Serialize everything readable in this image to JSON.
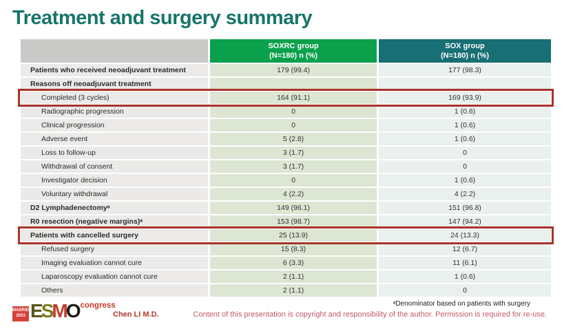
{
  "slide": {
    "title": "Treatment and surgery summary"
  },
  "table": {
    "columns": [
      {
        "label": "SOXRC group",
        "sublabel": "(N=180)  n (%)"
      },
      {
        "label": "SOX group",
        "sublabel": "(N=180)  n (%)"
      }
    ],
    "rows": [
      {
        "label": "Patients who received neoadjuvant treatment",
        "soxrc": "179 (99.4)",
        "sox": "177 (98.3)",
        "bold": true,
        "indent": false,
        "boxed": false
      },
      {
        "label": "Reasons off neoadjuvant treatment",
        "soxrc": "",
        "sox": "",
        "bold": true,
        "indent": false,
        "boxed": false
      },
      {
        "label": "Completed (3 cycles)",
        "soxrc": "164 (91.1)",
        "sox": "169 (93.9)",
        "bold": false,
        "indent": true,
        "boxed": true
      },
      {
        "label": "Radiographic progression",
        "soxrc": "0",
        "sox": "1 (0.6)",
        "bold": false,
        "indent": true,
        "boxed": false
      },
      {
        "label": "Clinical progression",
        "soxrc": "0",
        "sox": "1 (0.6)",
        "bold": false,
        "indent": true,
        "boxed": false
      },
      {
        "label": "Adverse event",
        "soxrc": "5 (2.8)",
        "sox": "1 (0.6)",
        "bold": false,
        "indent": true,
        "boxed": false
      },
      {
        "label": "Loss to follow-up",
        "soxrc": "3 (1.7)",
        "sox": "0",
        "bold": false,
        "indent": true,
        "boxed": false
      },
      {
        "label": "Withdrawal of consent",
        "soxrc": "3 (1.7)",
        "sox": "0",
        "bold": false,
        "indent": true,
        "boxed": false
      },
      {
        "label": "Investigator decision",
        "soxrc": "0",
        "sox": "1 (0.6)",
        "bold": false,
        "indent": true,
        "boxed": false
      },
      {
        "label": "Voluntary withdrawal",
        "soxrc": "4 (2.2)",
        "sox": "4 (2.2)",
        "bold": false,
        "indent": true,
        "boxed": false
      },
      {
        "label": "D2 Lymphadenectomyᵃ",
        "soxrc": "149 (96.1)",
        "sox": "151 (96.8)",
        "bold": true,
        "indent": false,
        "boxed": false
      },
      {
        "label": "R0 resection (negative margins)ᵃ",
        "soxrc": "153 (98.7)",
        "sox": "147 (94.2)",
        "bold": true,
        "indent": false,
        "boxed": false
      },
      {
        "label": "Patients with cancelled surgery",
        "soxrc": "25 (13.9)",
        "sox": "24 (13.3)",
        "bold": true,
        "indent": false,
        "boxed": true
      },
      {
        "label": "Refused surgery",
        "soxrc": "15 (8.3)",
        "sox": "12 (6.7)",
        "bold": false,
        "indent": true,
        "boxed": false
      },
      {
        "label": "Imaging evaluation cannot cure",
        "soxrc": "6 (3.3)",
        "sox": "11 (6.1)",
        "bold": false,
        "indent": true,
        "boxed": false
      },
      {
        "label": "Laparoscopy evaluation cannot cure",
        "soxrc": "2 (1.1)",
        "sox": "1 (0.6)",
        "bold": false,
        "indent": true,
        "boxed": false
      },
      {
        "label": "Others",
        "soxrc": "2 (1.1)",
        "sox": "0",
        "bold": false,
        "indent": true,
        "boxed": false
      }
    ]
  },
  "footer": {
    "footnote": "ᵃDenominator based on patients with surgery",
    "copyright": "Content of this presentation is copyright and responsibility of the author. Permission is required for re-use.",
    "author": "Chen LI M.D.",
    "logo": {
      "venue": "MADRID",
      "year": "2023",
      "letters": [
        {
          "char": "E",
          "color": "#55561d"
        },
        {
          "char": "S",
          "color": "#7c7d1c"
        },
        {
          "char": "M",
          "color": "#c23b28"
        },
        {
          "char": "O",
          "color": "#1c1c1c"
        }
      ],
      "congress": "congress"
    }
  },
  "colors": {
    "title": "#17756a",
    "header_gray": "#c9c9c7",
    "header_green": "#0ba04c",
    "header_teal": "#186f74",
    "highlight_box_red": "#a8332a",
    "label_cell_bg": "#ebeae8",
    "soxrc_cell_bg": "#dce6d3",
    "sox_cell_bg": "#e9f0ee",
    "copyright_text": "#c05a6a"
  }
}
